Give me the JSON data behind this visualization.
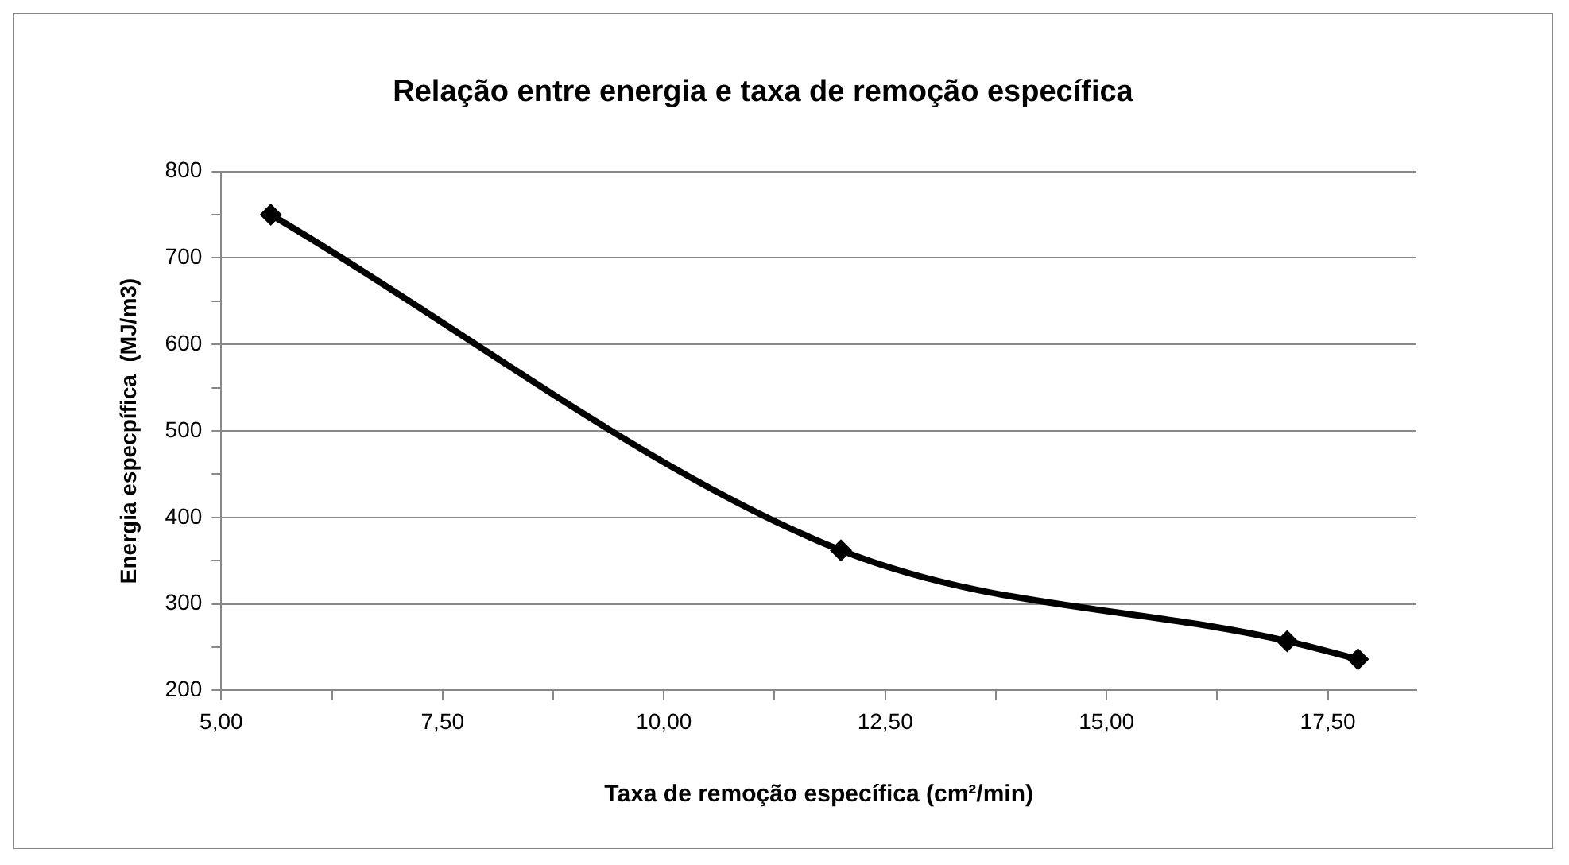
{
  "chart_data": {
    "type": "line",
    "title": "Relação entre energia e taxa de remoção específica",
    "xlabel": "Taxa de remoção específica (cm²/min)",
    "ylabel": "Energia especpífica  (MJ/m3)",
    "x": [
      5.56,
      12.0,
      17.04,
      17.84
    ],
    "series": [
      {
        "color": "#000000",
        "values": [
          750,
          362,
          257,
          236
        ]
      }
    ],
    "xlim": [
      5,
      18.5
    ],
    "xticks": [
      {
        "value": 5,
        "label": "5,00"
      },
      {
        "value": 6.25,
        "label": null
      },
      {
        "value": 7.5,
        "label": "7,50"
      },
      {
        "value": 8.75,
        "label": null
      },
      {
        "value": 10,
        "label": "10,00"
      },
      {
        "value": 11.25,
        "label": null
      },
      {
        "value": 12.5,
        "label": "12,50"
      },
      {
        "value": 13.75,
        "label": null
      },
      {
        "value": 15,
        "label": "15,00"
      },
      {
        "value": 16.25,
        "label": null
      },
      {
        "value": 17.5,
        "label": "17,50"
      }
    ],
    "ylim": [
      200,
      800
    ],
    "yticks": [
      200,
      {
        "value": 250,
        "label": null
      },
      300,
      {
        "value": 350,
        "label": null
      },
      400,
      {
        "value": 450,
        "label": null
      },
      500,
      {
        "value": 550,
        "label": null
      },
      600,
      {
        "value": 650,
        "label": null
      },
      700,
      {
        "value": 750,
        "label": null
      },
      800
    ],
    "grid": "y",
    "legend": false,
    "marker": "diamond",
    "line_style": "solid"
  }
}
